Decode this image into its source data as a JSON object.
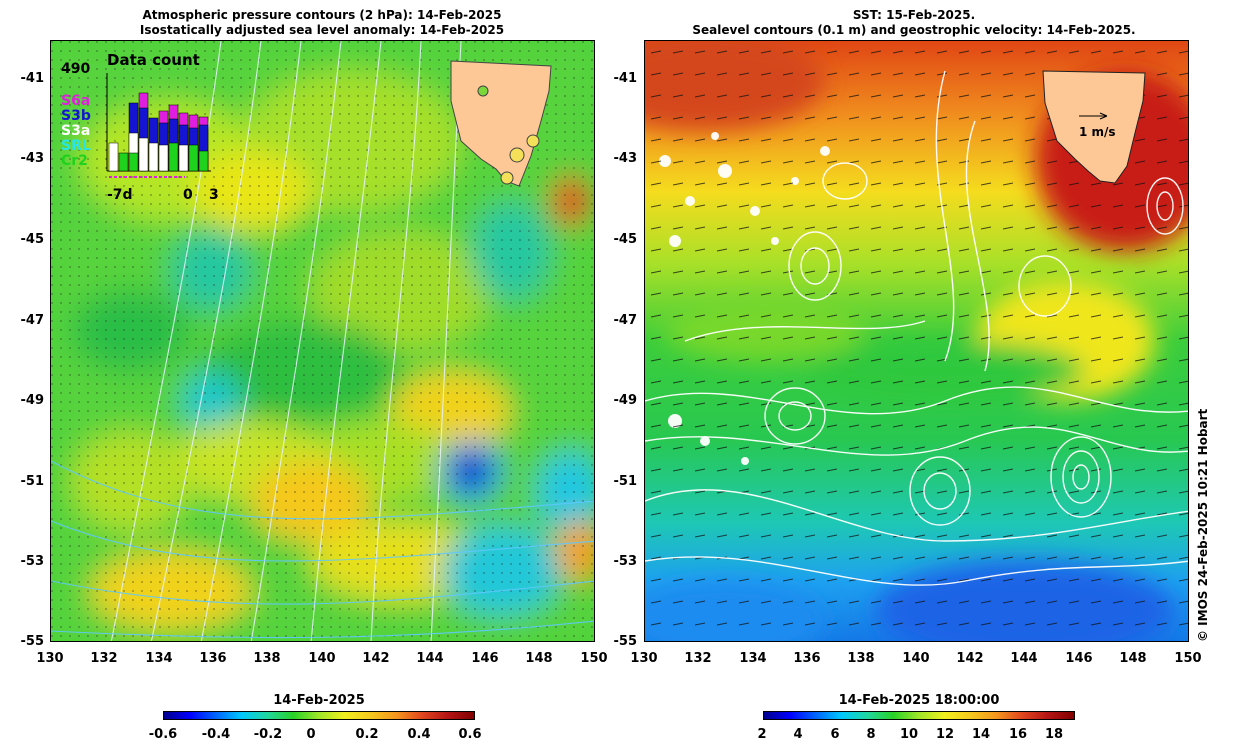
{
  "left_panel": {
    "title_line1": "Atmospheric pressure contours (2 hPa): 14-Feb-2025",
    "title_line2": "Isostatically adjusted sea level anomaly: 14-Feb-2025",
    "inset": {
      "title": "Data count",
      "max_count": "490",
      "missions": [
        {
          "label": "S6a",
          "color": "#e01ee0"
        },
        {
          "label": "S3b",
          "color": "#1414d2"
        },
        {
          "label": "S3a",
          "color": "#ffffff"
        },
        {
          "label": "SRL",
          "color": "#28e6e6"
        },
        {
          "label": "Cr2",
          "color": "#1ed21e"
        }
      ],
      "x_labels": [
        "-7d",
        "0",
        "3"
      ]
    },
    "colorbar": {
      "title": "14-Feb-2025",
      "ticks": [
        "-0.6",
        "-0.4",
        "-0.2",
        "0",
        "0.2",
        "0.4",
        "0.6"
      ]
    }
  },
  "right_panel": {
    "title_line1": "SST: 15-Feb-2025.",
    "title_line2": "Sealevel contours (0.1 m) and geostrophic velocity: 14-Feb-2025.",
    "scale_label": "1 m/s",
    "colorbar": {
      "title": "14-Feb-2025 18:00:00",
      "ticks": [
        "2",
        "4",
        "6",
        "8",
        "10",
        "12",
        "14",
        "16",
        "18"
      ]
    }
  },
  "axes": {
    "lat_ticks": [
      "-41",
      "-43",
      "-45",
      "-47",
      "-49",
      "-51",
      "-53",
      "-55"
    ],
    "lon_ticks": [
      "130",
      "132",
      "134",
      "136",
      "138",
      "140",
      "142",
      "144",
      "146",
      "148",
      "150"
    ]
  },
  "credit": "© IMOS 24-Feb-2025 10:21 Hobart"
}
